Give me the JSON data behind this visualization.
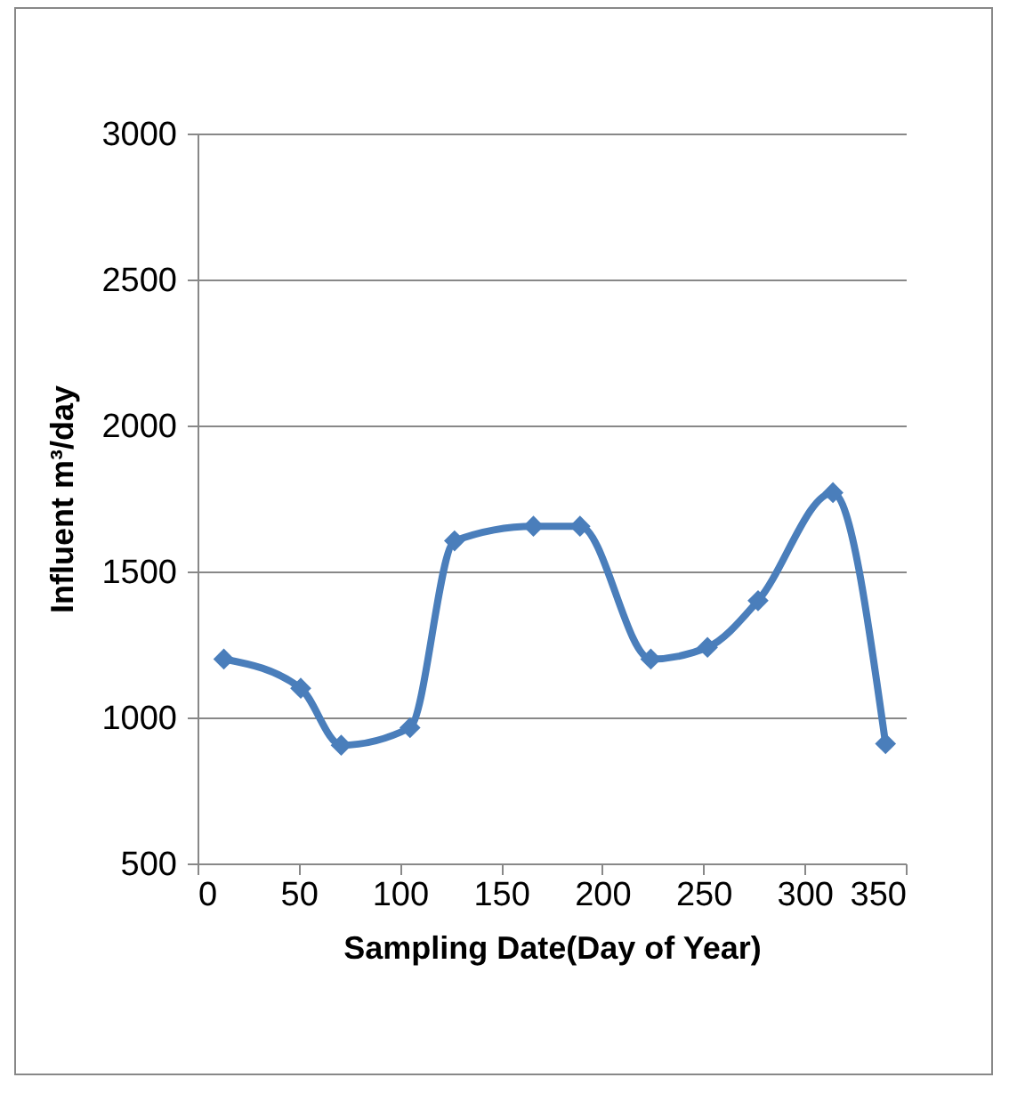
{
  "chart_data": {
    "type": "line",
    "xlabel": "Sampling Date(Day of Year)",
    "ylabel": "Influent  m³/day",
    "x": [
      13,
      51,
      71,
      105,
      127,
      166,
      189,
      224,
      252,
      277,
      314,
      340
    ],
    "series": [
      {
        "color": "#4a7ebb",
        "values": [
          1200,
          1100,
          905,
          965,
          1605,
          1655,
          1655,
          1200,
          1240,
          1400,
          1770,
          910
        ]
      }
    ],
    "xlim": [
      0,
      350
    ],
    "xticks": [
      0,
      50,
      100,
      150,
      200,
      250,
      300,
      350
    ],
    "ylim": [
      500,
      3000
    ],
    "yticks": [
      500,
      1000,
      1500,
      2000,
      2500,
      3000
    ],
    "grid": "y",
    "marker": "diamond",
    "line_style": "solid",
    "legend": false
  }
}
